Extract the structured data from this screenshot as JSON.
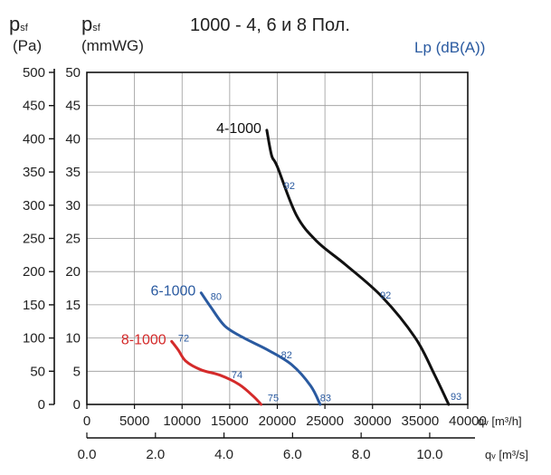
{
  "chart_data": {
    "type": "line",
    "title": "1000 - 4, 6 и 8 Пол.",
    "y_left_symbol": "p",
    "y_left_sub": "sf",
    "y_left_unit": "(Pa)",
    "y_inner_symbol": "p",
    "y_inner_sub": "sf",
    "y_inner_unit": "(mmWG)",
    "sound_label": "Lp (dB(A))",
    "x1_label_symbol": "q",
    "x1_label_sub": "v",
    "x1_label_unit": " [m³/h]",
    "x2_label_symbol": "q",
    "x2_label_sub": "v",
    "x2_label_unit": " [m³/s]",
    "y_pa_ticks": [
      "0",
      "50",
      "100",
      "150",
      "200",
      "250",
      "300",
      "350",
      "400",
      "450",
      "500"
    ],
    "y_mmwg_ticks": [
      "0",
      "5",
      "10",
      "15",
      "20",
      "25",
      "30",
      "35",
      "40",
      "45",
      "50"
    ],
    "x_m3h_ticks": [
      "0",
      "5000",
      "10000",
      "15000",
      "20000",
      "25000",
      "30000",
      "35000",
      "40000"
    ],
    "x_m3s_ticks": [
      "0.0",
      "2.0",
      "4.0",
      "6.0",
      "8.0",
      "10.0"
    ],
    "xlim_m3h": [
      0,
      40000
    ],
    "ylim_pa": [
      0,
      500
    ],
    "ylim_mmwg": [
      0,
      50
    ],
    "xlim_m3s": [
      0,
      11.11
    ],
    "grid": true,
    "series": [
      {
        "name": "4-1000",
        "color": "#111111",
        "points": [
          [
            18900,
            413
          ],
          [
            19400,
            375
          ],
          [
            20000,
            358
          ],
          [
            22000,
            285
          ],
          [
            24200,
            245
          ],
          [
            27200,
            210
          ],
          [
            31000,
            162
          ],
          [
            34500,
            100
          ],
          [
            36500,
            45
          ],
          [
            38000,
            0
          ]
        ],
        "sound": [
          {
            "label": "92",
            "x": 20500,
            "y": 330
          },
          {
            "label": "92",
            "x": 30600,
            "y": 165
          },
          {
            "label": "93",
            "x": 38000,
            "y": 12
          }
        ]
      },
      {
        "name": "6-1000",
        "color": "#2a5aa0",
        "points": [
          [
            12000,
            168
          ],
          [
            13000,
            147
          ],
          [
            14500,
            118
          ],
          [
            16500,
            100
          ],
          [
            19000,
            82
          ],
          [
            21500,
            60
          ],
          [
            23500,
            28
          ],
          [
            24500,
            0
          ]
        ],
        "sound": [
          {
            "label": "80",
            "x": 12800,
            "y": 163
          },
          {
            "label": "82",
            "x": 20200,
            "y": 75
          },
          {
            "label": "83",
            "x": 24300,
            "y": 10
          }
        ]
      },
      {
        "name": "8-1000",
        "color": "#d42a2a",
        "points": [
          [
            8900,
            95
          ],
          [
            9600,
            82
          ],
          [
            10400,
            65
          ],
          [
            12000,
            52
          ],
          [
            14000,
            44
          ],
          [
            16000,
            30
          ],
          [
            17500,
            12
          ],
          [
            18300,
            0
          ]
        ],
        "sound": [
          {
            "label": "72",
            "x": 9400,
            "y": 100
          },
          {
            "label": "74",
            "x": 15000,
            "y": 45
          },
          {
            "label": "75",
            "x": 18800,
            "y": 10
          }
        ]
      }
    ]
  }
}
